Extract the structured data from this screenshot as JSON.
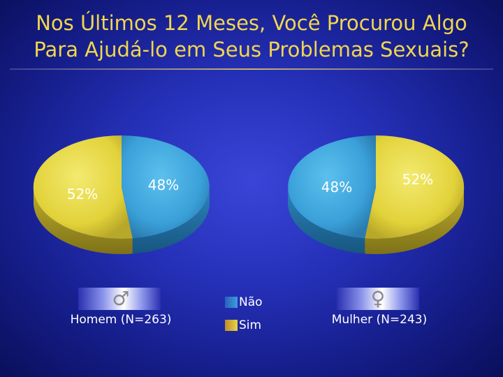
{
  "title_line1": "Nos Últimos 12 Meses, Você Procurou Algo",
  "title_line2": "Para Ajudá-lo em Seus Problemas Sexuais?",
  "colors": {
    "nao": "#3aa0d8",
    "sim": "#e6d640",
    "title": "#f2d64e"
  },
  "legend": [
    {
      "label": "Não",
      "icon": "blue-swatch"
    },
    {
      "label": "Sim",
      "icon": "yellow-swatch"
    }
  ],
  "chart_data": [
    {
      "type": "pie",
      "group_label": "Homem (N=263)",
      "icon": "male-symbol-icon",
      "symbol": "♂",
      "slices": [
        {
          "category": "Não",
          "value": 48,
          "label": "48%"
        },
        {
          "category": "Sim",
          "value": 52,
          "label": "52%"
        }
      ]
    },
    {
      "type": "pie",
      "group_label": "Mulher (N=243)",
      "icon": "female-symbol-icon",
      "symbol": "♀",
      "slices": [
        {
          "category": "Não",
          "value": 48,
          "label": "48%"
        },
        {
          "category": "Sim",
          "value": 52,
          "label": "52%"
        }
      ]
    }
  ]
}
